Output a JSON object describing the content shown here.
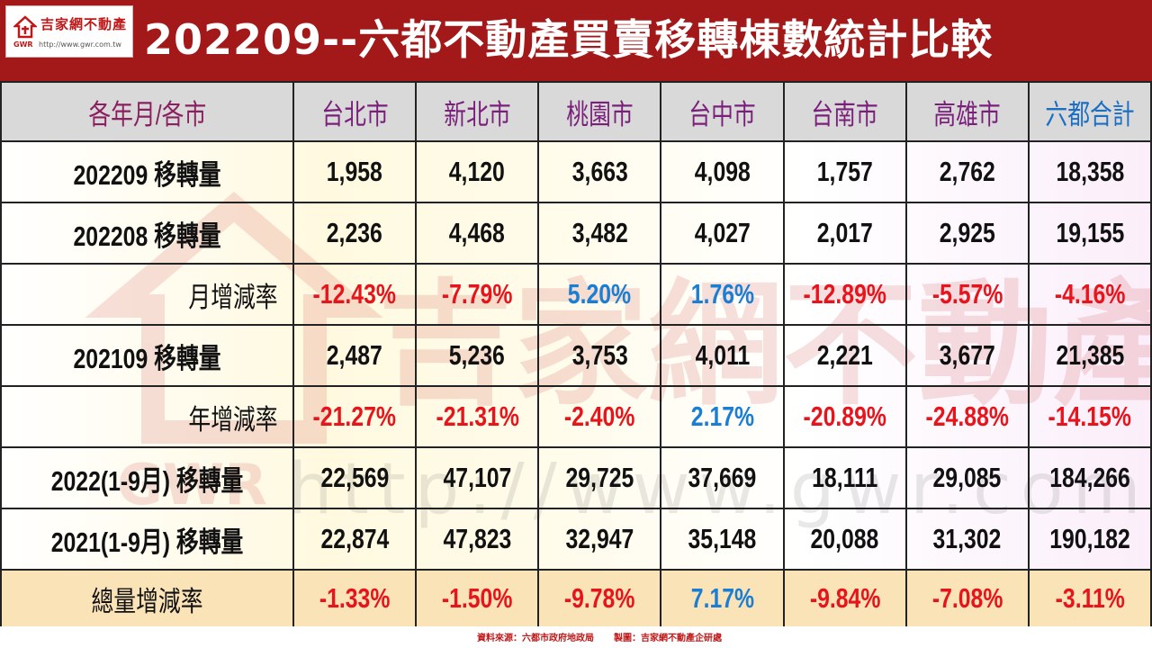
{
  "header": {
    "title": "202209--六都不動產買賣移轉棟數統計比較",
    "logo_text": "吉家網不動產",
    "logo_mark": "GWR",
    "logo_url": "http://www.gwr.com.tw"
  },
  "table": {
    "corner": "各年月/各市",
    "columns": [
      "台北市",
      "新北市",
      "桃園市",
      "台中市",
      "台南市",
      "高雄市",
      "六都合計"
    ],
    "rows": [
      {
        "label": "202209 移轉量",
        "values": [
          "1,958",
          "4,120",
          "3,663",
          "4,098",
          "1,757",
          "2,762",
          "18,358"
        ]
      },
      {
        "label": "202208 移轉量",
        "values": [
          "2,236",
          "4,468",
          "3,482",
          "4,027",
          "2,017",
          "2,925",
          "19,155"
        ]
      },
      {
        "label": "月增減率",
        "values": [
          "-12.43%",
          "-7.79%",
          "5.20%",
          "1.76%",
          "-12.89%",
          "-5.57%",
          "-4.16%"
        ]
      },
      {
        "label": "202109 移轉量",
        "values": [
          "2,487",
          "5,236",
          "3,753",
          "4,011",
          "2,221",
          "3,677",
          "21,385"
        ]
      },
      {
        "label": "年增減率",
        "values": [
          "-21.27%",
          "-21.31%",
          "-2.40%",
          "2.17%",
          "-20.89%",
          "-24.88%",
          "-14.15%"
        ]
      },
      {
        "label": "2022(1-9月) 移轉量",
        "values": [
          "22,569",
          "47,107",
          "29,725",
          "37,669",
          "18,111",
          "29,085",
          "184,266"
        ]
      },
      {
        "label": "2021(1-9月) 移轉量",
        "values": [
          "22,874",
          "47,823",
          "32,947",
          "35,148",
          "20,088",
          "31,302",
          "190,182"
        ]
      },
      {
        "label": "總量增減率",
        "values": [
          "-1.33%",
          "-1.50%",
          "-9.78%",
          "7.17%",
          "-9.84%",
          "-7.08%",
          "-3.11%"
        ]
      }
    ]
  },
  "watermark": {
    "brand": "吉家網不動產",
    "url": "http://www.gwr.com.tw",
    "mark": "GWR"
  },
  "footer": {
    "source": "資料來源：六都市政府地政局",
    "made_by": "製圖：吉家網不動產企研處"
  },
  "colors": {
    "header_bg": "#a31818",
    "negative": "#e8141c",
    "positive": "#1a7fd4",
    "header_row_bg": "#d9d9d9",
    "last_row_bg": "#fbe3b8"
  }
}
